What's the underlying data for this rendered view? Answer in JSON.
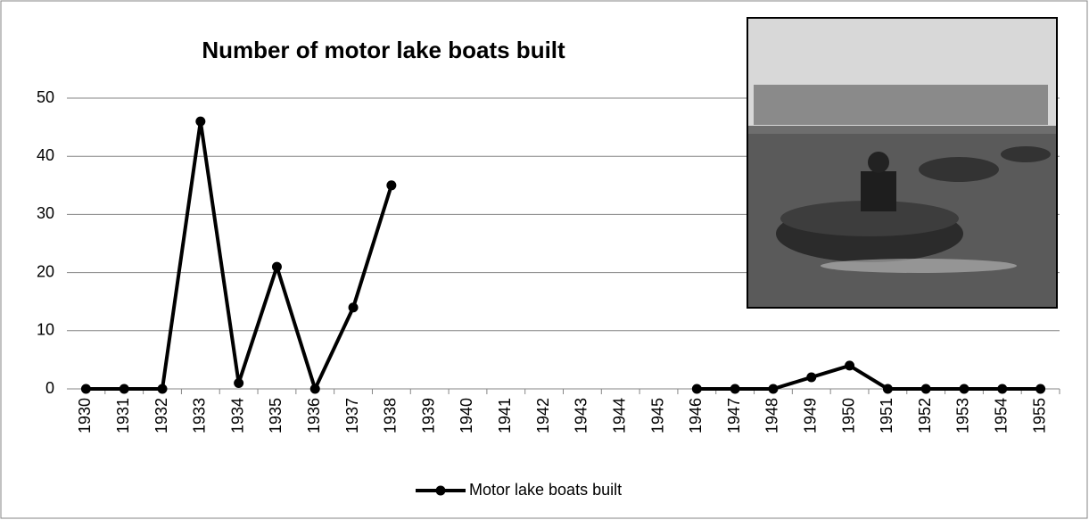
{
  "chart_data": {
    "type": "line",
    "title": "Number of motor lake boats built",
    "categories": [
      "1930",
      "1931",
      "1932",
      "1933",
      "1934",
      "1935",
      "1936",
      "1937",
      "1938",
      "1939",
      "1940",
      "1941",
      "1942",
      "1943",
      "1944",
      "1945",
      "1946",
      "1947",
      "1948",
      "1949",
      "1950",
      "1951",
      "1952",
      "1953",
      "1954",
      "1955"
    ],
    "series": [
      {
        "name": "Motor lake boats built",
        "color": "#000000",
        "values": [
          0,
          0,
          0,
          46,
          1,
          21,
          0,
          14,
          35,
          null,
          null,
          null,
          null,
          null,
          null,
          null,
          0,
          0,
          0,
          2,
          4,
          0,
          0,
          0,
          0,
          0
        ]
      }
    ],
    "ylim": [
      0,
      50
    ],
    "yticks": [
      0,
      10,
      20,
      30,
      40,
      50
    ],
    "grid": true,
    "legend": "bottom"
  }
}
